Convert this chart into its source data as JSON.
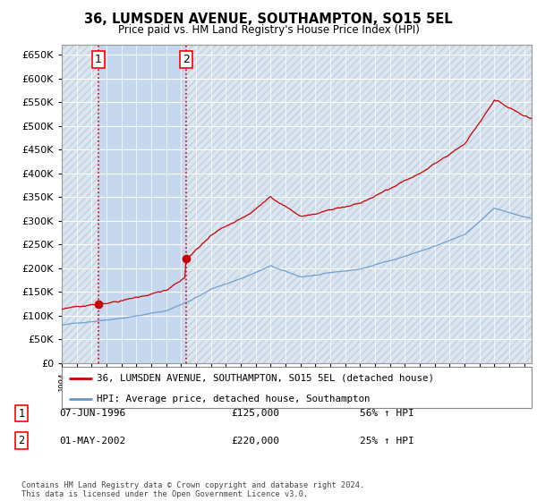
{
  "title": "36, LUMSDEN AVENUE, SOUTHAMPTON, SO15 5EL",
  "subtitle": "Price paid vs. HM Land Registry's House Price Index (HPI)",
  "ylim": [
    0,
    670000
  ],
  "yticks": [
    0,
    50000,
    100000,
    150000,
    200000,
    250000,
    300000,
    350000,
    400000,
    450000,
    500000,
    550000,
    600000,
    650000
  ],
  "xlim_start": 1994.0,
  "xlim_end": 2025.5,
  "sale1_date": 1996.44,
  "sale1_price": 125000,
  "sale1_label": "1",
  "sale2_date": 2002.33,
  "sale2_price": 220000,
  "sale2_label": "2",
  "legend_line1": "36, LUMSDEN AVENUE, SOUTHAMPTON, SO15 5EL (detached house)",
  "legend_line2": "HPI: Average price, detached house, Southampton",
  "annotation1_num": "1",
  "annotation1_date": "07-JUN-1996",
  "annotation1_price": "£125,000",
  "annotation1_hpi": "56% ↑ HPI",
  "annotation2_num": "2",
  "annotation2_date": "01-MAY-2002",
  "annotation2_price": "£220,000",
  "annotation2_hpi": "25% ↑ HPI",
  "footer": "Contains HM Land Registry data © Crown copyright and database right 2024.\nThis data is licensed under the Open Government Licence v3.0.",
  "line_color_red": "#cc0000",
  "line_color_blue": "#6699cc",
  "plot_bg_color": "#dce6f1",
  "fill_between_color": "#c5d8ef",
  "grid_color": "#ffffff",
  "vline_color": "#cc0000"
}
